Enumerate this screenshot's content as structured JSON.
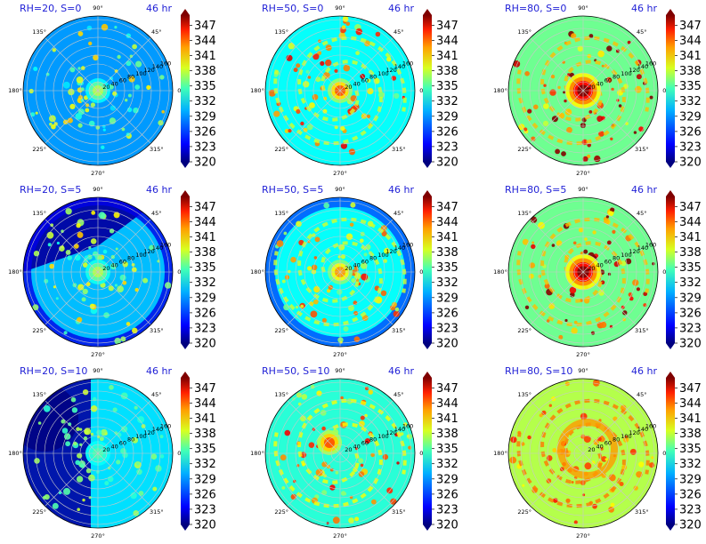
{
  "chart_data": {
    "type": "heatmap",
    "projection": "polar",
    "angular_ticks": [
      "0°",
      "45°",
      "90°",
      "135°",
      "180°",
      "225°",
      "270°",
      "315°"
    ],
    "radial_ticks": [
      20,
      40,
      60,
      80,
      100,
      120,
      140,
      160
    ],
    "colorbar": {
      "ticks": [
        320,
        323,
        326,
        329,
        332,
        335,
        338,
        341,
        344,
        347
      ],
      "colormap": "jet",
      "range": [
        320,
        349
      ]
    },
    "panels": [
      {
        "label": "RH=20, S=0",
        "time": "46 hr",
        "core_value": 336,
        "background_value": 328,
        "rim_value": 327,
        "features": "scattered convective cells"
      },
      {
        "label": "RH=50, S=0",
        "time": "46 hr",
        "core_value": 343,
        "background_value": 331,
        "rim_value": 330,
        "features": "warm core with spiral cells"
      },
      {
        "label": "RH=80, S=0",
        "time": "46 hr",
        "core_value": 349,
        "background_value": 334,
        "rim_value": 334,
        "features": "strong warm core with rainbands"
      },
      {
        "label": "RH=20, S=5",
        "time": "46 hr",
        "core_value": 336,
        "background_value": 329,
        "rim_value": 321,
        "features": "dry upper-left rim"
      },
      {
        "label": "RH=50, S=5",
        "time": "46 hr",
        "core_value": 341,
        "background_value": 331,
        "rim_value": 326,
        "features": "warm core, cooler rim"
      },
      {
        "label": "RH=80, S=5",
        "time": "46 hr",
        "core_value": 349,
        "background_value": 334,
        "rim_value": 334,
        "features": "strong warm core"
      },
      {
        "label": "RH=20, S=10",
        "time": "46 hr",
        "core_value": 333,
        "background_value": 330,
        "rim_value": 320,
        "features": "dry left half"
      },
      {
        "label": "RH=50, S=10",
        "time": "46 hr",
        "core_value": 343,
        "background_value": 332,
        "rim_value": 330,
        "features": "offset warm band"
      },
      {
        "label": "RH=80, S=10",
        "time": "46 hr",
        "core_value": 341,
        "background_value": 336,
        "rim_value": 335,
        "features": "broken warm ring"
      }
    ]
  }
}
